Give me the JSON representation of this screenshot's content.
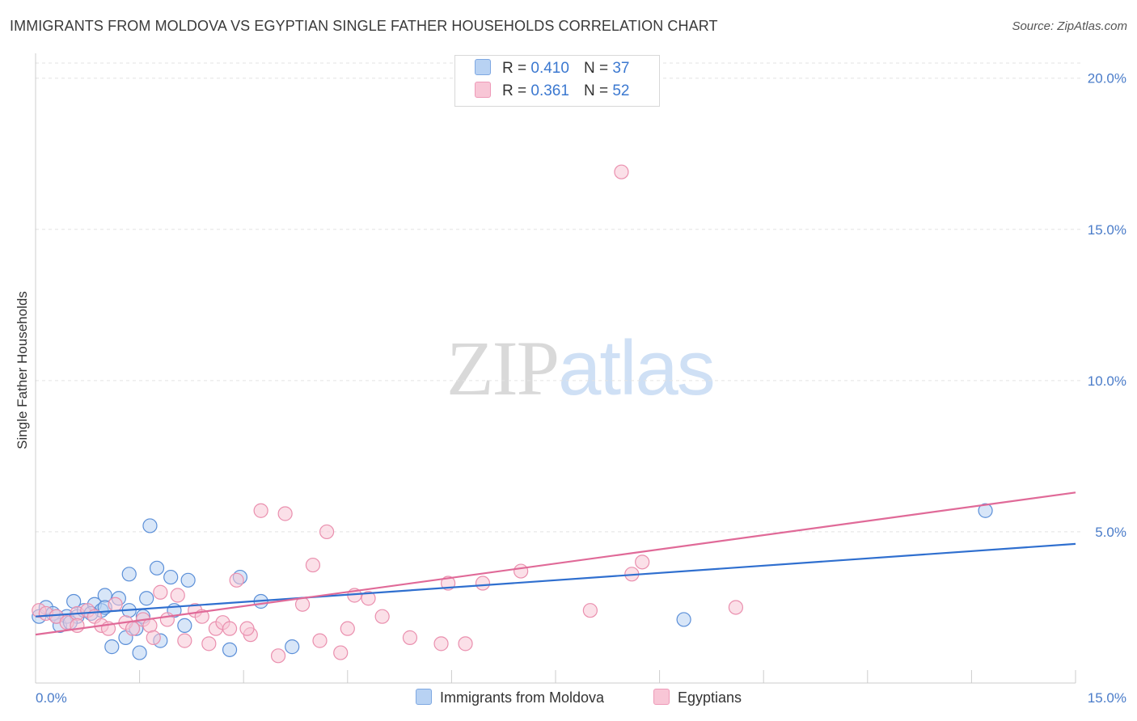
{
  "title": "IMMIGRANTS FROM MOLDOVA VS EGYPTIAN SINGLE FATHER HOUSEHOLDS CORRELATION CHART",
  "source": "Source: ZipAtlas.com",
  "watermark": {
    "part1": "ZIP",
    "part2": "atlas"
  },
  "legend_top": [
    {
      "r_label": "R =",
      "r_value": "0.410",
      "n_label": "N =",
      "n_value": "37",
      "color": "#a9c8f0"
    },
    {
      "r_label": "R =",
      "r_value": "0.361",
      "n_label": "N =",
      "n_value": "52",
      "color": "#f7b8cc"
    }
  ],
  "chart_data": {
    "type": "scatter",
    "ylabel": "Single Father Households",
    "x_ticks": [
      "0.0%",
      "15.0%"
    ],
    "y_ticks": [
      "5.0%",
      "10.0%",
      "15.0%",
      "20.0%"
    ],
    "xlim": [
      0,
      15
    ],
    "ylim": [
      0,
      20.5
    ],
    "grid": true,
    "legend_position": "top-center",
    "series": [
      {
        "name": "Immigrants from Moldova",
        "color": "#5b8fd8",
        "fill": "#b8d2f3",
        "trend": {
          "x": [
            0,
            15
          ],
          "y": [
            2.2,
            4.6
          ],
          "color": "#2f6fcf"
        },
        "points": [
          [
            0.05,
            2.2
          ],
          [
            0.15,
            2.5
          ],
          [
            0.25,
            2.3
          ],
          [
            0.35,
            1.9
          ],
          [
            0.45,
            2.2
          ],
          [
            0.55,
            2.7
          ],
          [
            0.6,
            2.2
          ],
          [
            0.7,
            2.4
          ],
          [
            0.85,
            2.6
          ],
          [
            0.95,
            2.4
          ],
          [
            1.0,
            2.9
          ],
          [
            1.1,
            1.2
          ],
          [
            1.2,
            2.8
          ],
          [
            1.3,
            1.5
          ],
          [
            1.35,
            2.4
          ],
          [
            1.35,
            3.6
          ],
          [
            1.45,
            1.8
          ],
          [
            1.5,
            1.0
          ],
          [
            1.55,
            2.2
          ],
          [
            1.6,
            2.8
          ],
          [
            1.65,
            5.2
          ],
          [
            1.75,
            3.8
          ],
          [
            1.8,
            1.4
          ],
          [
            1.95,
            3.5
          ],
          [
            2.0,
            2.4
          ],
          [
            2.15,
            1.9
          ],
          [
            2.2,
            3.4
          ],
          [
            2.8,
            1.1
          ],
          [
            2.95,
            3.5
          ],
          [
            3.25,
            2.7
          ],
          [
            3.7,
            1.2
          ],
          [
            9.35,
            2.1
          ],
          [
            13.7,
            5.7
          ],
          [
            0.3,
            2.2
          ],
          [
            0.5,
            2.0
          ],
          [
            0.8,
            2.3
          ],
          [
            1.0,
            2.5
          ]
        ]
      },
      {
        "name": "Egyptians",
        "color": "#ea8fae",
        "fill": "#f8c6d6",
        "trend": {
          "x": [
            0,
            15
          ],
          "y": [
            1.6,
            6.3
          ],
          "color": "#e06a98"
        },
        "points": [
          [
            0.05,
            2.4
          ],
          [
            0.15,
            2.3
          ],
          [
            0.3,
            2.2
          ],
          [
            0.45,
            2.0
          ],
          [
            0.6,
            2.3
          ],
          [
            0.75,
            2.4
          ],
          [
            0.85,
            2.2
          ],
          [
            0.95,
            1.9
          ],
          [
            1.05,
            1.8
          ],
          [
            1.15,
            2.6
          ],
          [
            1.3,
            2.0
          ],
          [
            1.4,
            1.8
          ],
          [
            1.55,
            2.1
          ],
          [
            1.65,
            1.9
          ],
          [
            1.7,
            1.5
          ],
          [
            1.8,
            3.0
          ],
          [
            1.9,
            2.1
          ],
          [
            2.05,
            2.9
          ],
          [
            2.15,
            1.4
          ],
          [
            2.3,
            2.4
          ],
          [
            2.4,
            2.2
          ],
          [
            2.5,
            1.3
          ],
          [
            2.6,
            1.8
          ],
          [
            2.7,
            2.0
          ],
          [
            2.8,
            1.8
          ],
          [
            2.9,
            3.4
          ],
          [
            3.1,
            1.6
          ],
          [
            3.05,
            1.8
          ],
          [
            3.25,
            5.7
          ],
          [
            3.6,
            5.6
          ],
          [
            3.5,
            0.9
          ],
          [
            3.85,
            2.6
          ],
          [
            4.0,
            3.9
          ],
          [
            4.1,
            1.4
          ],
          [
            4.2,
            5.0
          ],
          [
            4.4,
            1.0
          ],
          [
            4.5,
            1.8
          ],
          [
            4.6,
            2.9
          ],
          [
            4.8,
            2.8
          ],
          [
            5.0,
            2.2
          ],
          [
            5.4,
            1.5
          ],
          [
            5.85,
            1.3
          ],
          [
            5.95,
            3.3
          ],
          [
            6.2,
            1.3
          ],
          [
            6.45,
            3.3
          ],
          [
            7.0,
            3.7
          ],
          [
            8.0,
            2.4
          ],
          [
            8.6,
            3.6
          ],
          [
            8.75,
            4.0
          ],
          [
            10.1,
            2.5
          ],
          [
            8.45,
            16.9
          ],
          [
            0.6,
            1.9
          ]
        ]
      }
    ]
  }
}
